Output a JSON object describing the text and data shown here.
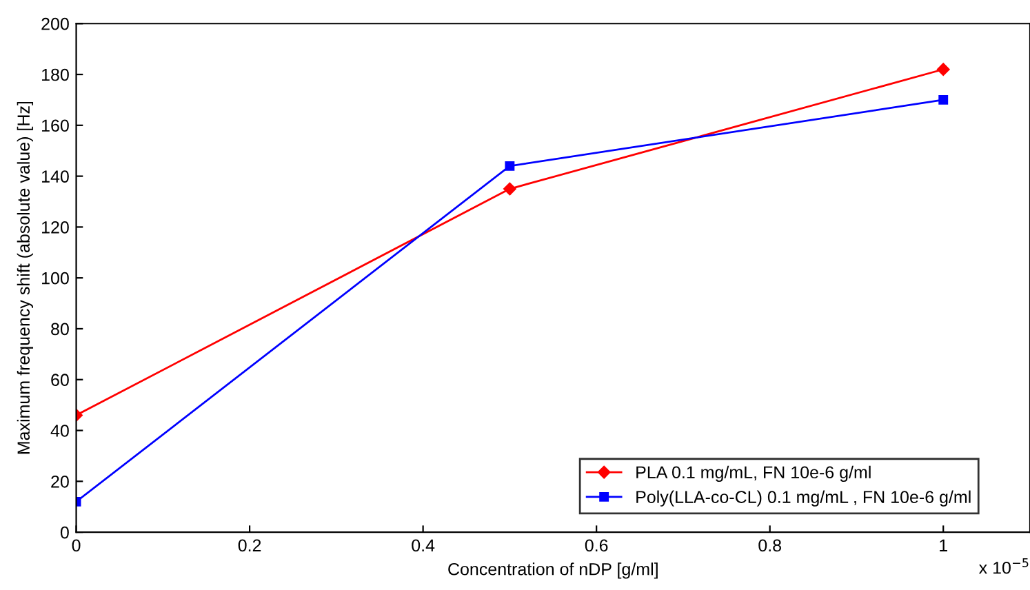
{
  "chart_data": {
    "type": "line",
    "xlabel": "Concentration of nDP [g/ml]",
    "ylabel": "Maximum frequency shift (absolute value) [Hz]",
    "x": [
      0,
      0.5,
      1
    ],
    "series": [
      {
        "name": "PLA 0.1 mg/mL, FN 10e-6 g/ml",
        "color": "#ff0000",
        "marker": "diamond",
        "values": [
          46,
          135,
          182
        ]
      },
      {
        "name": "Poly(LLA-co-CL) 0.1 mg/mL , FN 10e-6 g/ml",
        "color": "#0000ff",
        "marker": "square",
        "values": [
          12,
          144,
          170
        ]
      }
    ],
    "xlim": [
      0,
      1.1
    ],
    "xticks": [
      0,
      0.2,
      0.4,
      0.6,
      0.8,
      1
    ],
    "ylim": [
      0,
      200
    ],
    "yticks": [
      0,
      20,
      40,
      60,
      80,
      100,
      120,
      140,
      160,
      180,
      200
    ],
    "annotations": [
      "x 10$^{−5}$"
    ],
    "legend": "bottom right",
    "grid": false,
    "line_style": "solid"
  }
}
